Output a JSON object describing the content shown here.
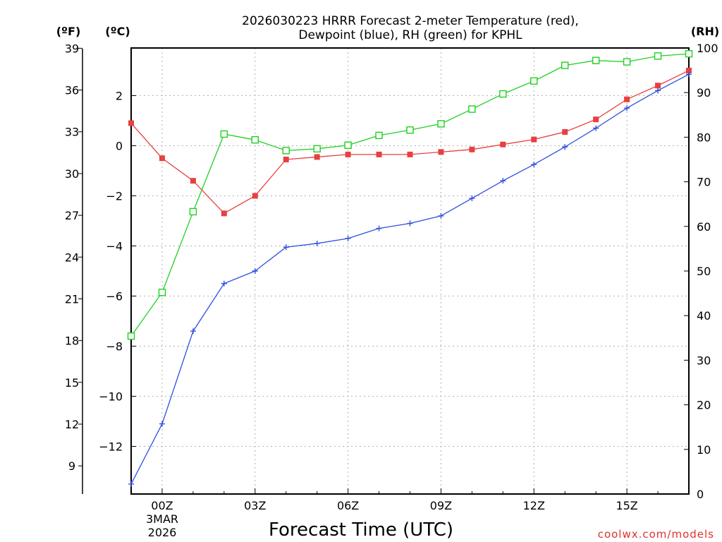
{
  "chart_data": {
    "type": "line",
    "title_line1": "2026030223 HRRR Forecast 2-meter Temperature (red),",
    "title_line2": "Dewpoint (blue), RH (green) for KPHL",
    "xlabel": "Forecast Time (UTC)",
    "credit": "coolwx.com/models",
    "units": {
      "fahrenheit": "(ºF)",
      "celsius": "(ºC)",
      "rh": "(RH)"
    },
    "x": [
      0,
      1,
      2,
      3,
      4,
      5,
      6,
      7,
      8,
      9,
      10,
      11,
      12,
      13,
      14,
      15,
      16,
      17,
      18
    ],
    "x_offset_hours": -1,
    "xlim": [
      0,
      18
    ],
    "x_ticks": [
      {
        "x": 1,
        "label": "00Z"
      },
      {
        "x": 4,
        "label": "03Z"
      },
      {
        "x": 7,
        "label": "06Z"
      },
      {
        "x": 10,
        "label": "09Z"
      },
      {
        "x": 13,
        "label": "12Z"
      },
      {
        "x": 16,
        "label": "15Z"
      }
    ],
    "date_label": [
      "3MAR",
      "2026"
    ],
    "celsius_ylim": [
      -13.9,
      3.9
    ],
    "celsius_ticks": [
      -12,
      -10,
      -8,
      -6,
      -4,
      -2,
      0,
      2
    ],
    "fahrenheit_ticks": [
      9,
      12,
      15,
      18,
      21,
      24,
      27,
      30,
      33,
      36,
      39
    ],
    "rh_ylim": [
      0,
      100
    ],
    "rh_ticks": [
      0,
      10,
      20,
      30,
      40,
      50,
      60,
      70,
      80,
      90,
      100
    ],
    "series": [
      {
        "name": "Temperature",
        "color": "#e84040",
        "marker": "filled-square",
        "axis": "celsius",
        "values": [
          0.9,
          -0.5,
          -1.4,
          -2.7,
          -2.0,
          -0.55,
          -0.45,
          -0.35,
          -0.35,
          -0.35,
          -0.25,
          -0.15,
          0.05,
          0.25,
          0.55,
          1.05,
          1.85,
          2.4,
          3.0
        ]
      },
      {
        "name": "Dewpoint",
        "color": "#3050e0",
        "marker": "plus",
        "axis": "celsius",
        "values": [
          -13.5,
          -11.1,
          -7.4,
          -5.5,
          -5.0,
          -4.05,
          -3.9,
          -3.7,
          -3.3,
          -3.1,
          -2.8,
          -2.1,
          -1.4,
          -0.75,
          -0.05,
          0.7,
          1.5,
          2.2,
          2.85
        ]
      },
      {
        "name": "RH",
        "color": "#20d020",
        "marker": "open-square",
        "axis": "rh",
        "values": [
          35.4,
          45.2,
          63.3,
          80.7,
          79.4,
          77.0,
          77.4,
          78.2,
          80.4,
          81.6,
          83.0,
          86.3,
          89.7,
          92.6,
          96.1,
          97.2,
          96.9,
          98.2,
          98.7
        ]
      }
    ]
  }
}
